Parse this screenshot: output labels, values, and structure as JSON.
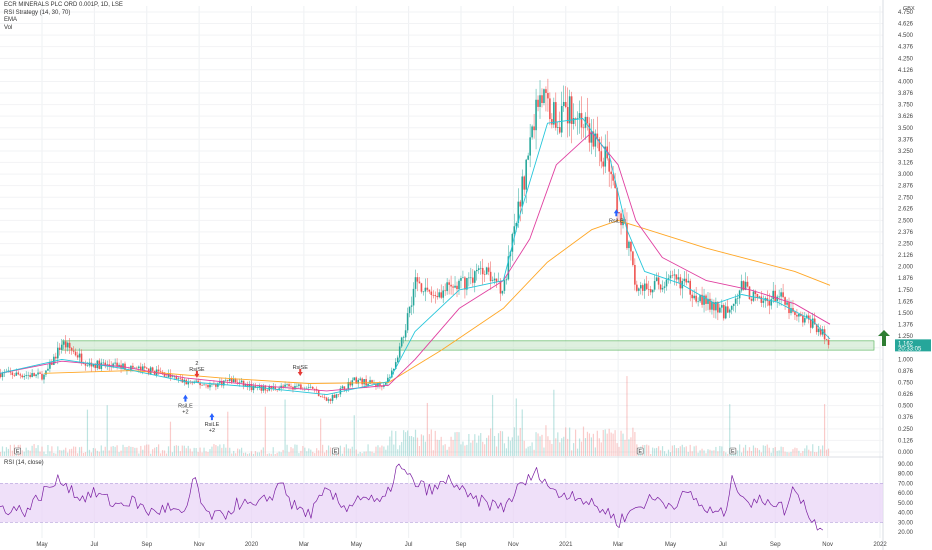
{
  "legend": {
    "symbol": "ECR MINERALS PLC ORD 0.001P, 1D, LSE",
    "strategy": "RSI Strategy (14, 30, 70)",
    "ema": "EMA",
    "vol": "Vol"
  },
  "rsi_legend": "RSI (14, close)",
  "price_axis": {
    "unit": "GBX",
    "last_price": "1.162",
    "countdown": "20:33:05"
  },
  "colors": {
    "up": "#26a69a",
    "down": "#ef5350",
    "ema_fast": "#26c6da",
    "ema_mid": "#e040a0",
    "ema_slow": "#ffa726",
    "rsi_line": "#7b1fa2",
    "rsi_band": "#e9d5f7",
    "zone_fill": "#c8e6c9",
    "zone_border": "#4caf50",
    "arrow": "#2e7d32"
  },
  "annotations": {
    "rule_long": "RsiLE",
    "rule_short": "RsiSE",
    "qty_plus": "+2",
    "qty_minus": "-2",
    "qty_plain": "2",
    "event": "E"
  },
  "chart_data": {
    "type": "candlestick",
    "x_ticks": [
      "May",
      "Jul",
      "Sep",
      "Nov",
      "2020",
      "Mar",
      "May",
      "Jul",
      "Sep",
      "Nov",
      "2021",
      "Mar",
      "May",
      "Jul",
      "Sep",
      "Nov",
      "2022"
    ],
    "price_ticks": [
      "4.750",
      "4.626",
      "4.500",
      "4.376",
      "4.250",
      "4.126",
      "4.000",
      "3.876",
      "3.750",
      "3.626",
      "3.500",
      "3.376",
      "3.250",
      "3.126",
      "3.000",
      "2.876",
      "2.750",
      "2.626",
      "2.500",
      "2.376",
      "2.250",
      "2.126",
      "2.000",
      "1.876",
      "1.750",
      "1.626",
      "1.500",
      "1.376",
      "1.250",
      "1.126",
      "1.000",
      "0.876",
      "0.750",
      "0.626",
      "0.500",
      "0.376",
      "0.250",
      "0.126",
      "0.000"
    ],
    "ylim": [
      0,
      4.75
    ],
    "rsi_ticks": [
      "90.00",
      "80.00",
      "70.00",
      "60.00",
      "50.00",
      "40.00",
      "30.00",
      "20.00"
    ],
    "rsi_band": [
      30,
      70
    ],
    "support_zone": [
      1.1,
      1.2
    ],
    "price_path": [
      [
        0,
        0.85
      ],
      [
        0.05,
        0.82
      ],
      [
        0.07,
        1.18
      ],
      [
        0.1,
        0.95
      ],
      [
        0.14,
        0.92
      ],
      [
        0.18,
        0.86
      ],
      [
        0.21,
        0.75
      ],
      [
        0.24,
        0.72
      ],
      [
        0.26,
        0.78
      ],
      [
        0.29,
        0.68
      ],
      [
        0.32,
        0.7
      ],
      [
        0.35,
        0.72
      ],
      [
        0.37,
        0.55
      ],
      [
        0.4,
        0.78
      ],
      [
        0.43,
        0.72
      ],
      [
        0.44,
        0.8
      ],
      [
        0.45,
        1.0
      ],
      [
        0.47,
        1.85
      ],
      [
        0.49,
        1.7
      ],
      [
        0.52,
        1.8
      ],
      [
        0.55,
        2.0
      ],
      [
        0.57,
        1.75
      ],
      [
        0.59,
        2.8
      ],
      [
        0.61,
        3.9
      ],
      [
        0.63,
        3.6
      ],
      [
        0.65,
        3.7
      ],
      [
        0.67,
        3.4
      ],
      [
        0.69,
        3.1
      ],
      [
        0.7,
        2.5
      ],
      [
        0.71,
        2.3
      ],
      [
        0.72,
        1.75
      ],
      [
        0.74,
        1.8
      ],
      [
        0.77,
        1.85
      ],
      [
        0.8,
        1.6
      ],
      [
        0.82,
        1.5
      ],
      [
        0.84,
        1.8
      ],
      [
        0.86,
        1.6
      ],
      [
        0.88,
        1.7
      ],
      [
        0.9,
        1.45
      ],
      [
        0.92,
        1.4
      ],
      [
        0.94,
        1.16
      ]
    ],
    "ema_fast": [
      [
        0,
        0.85
      ],
      [
        0.07,
        1.0
      ],
      [
        0.14,
        0.9
      ],
      [
        0.21,
        0.76
      ],
      [
        0.29,
        0.7
      ],
      [
        0.37,
        0.62
      ],
      [
        0.44,
        0.76
      ],
      [
        0.47,
        1.3
      ],
      [
        0.52,
        1.75
      ],
      [
        0.57,
        1.85
      ],
      [
        0.59,
        2.6
      ],
      [
        0.62,
        3.55
      ],
      [
        0.66,
        3.6
      ],
      [
        0.69,
        3.2
      ],
      [
        0.71,
        2.4
      ],
      [
        0.73,
        1.95
      ],
      [
        0.77,
        1.82
      ],
      [
        0.81,
        1.6
      ],
      [
        0.84,
        1.7
      ],
      [
        0.88,
        1.62
      ],
      [
        0.92,
        1.42
      ],
      [
        0.94,
        1.22
      ]
    ],
    "ema_mid": [
      [
        0,
        0.85
      ],
      [
        0.07,
        0.98
      ],
      [
        0.14,
        0.92
      ],
      [
        0.21,
        0.8
      ],
      [
        0.29,
        0.72
      ],
      [
        0.37,
        0.66
      ],
      [
        0.44,
        0.72
      ],
      [
        0.47,
        1.0
      ],
      [
        0.52,
        1.55
      ],
      [
        0.57,
        1.85
      ],
      [
        0.6,
        2.3
      ],
      [
        0.63,
        3.1
      ],
      [
        0.67,
        3.45
      ],
      [
        0.7,
        3.1
      ],
      [
        0.72,
        2.5
      ],
      [
        0.75,
        2.1
      ],
      [
        0.8,
        1.85
      ],
      [
        0.85,
        1.75
      ],
      [
        0.9,
        1.6
      ],
      [
        0.94,
        1.38
      ]
    ],
    "ema_slow": [
      [
        0.05,
        0.85
      ],
      [
        0.15,
        0.88
      ],
      [
        0.25,
        0.8
      ],
      [
        0.35,
        0.74
      ],
      [
        0.44,
        0.75
      ],
      [
        0.5,
        1.1
      ],
      [
        0.57,
        1.55
      ],
      [
        0.62,
        2.05
      ],
      [
        0.67,
        2.4
      ],
      [
        0.7,
        2.5
      ],
      [
        0.75,
        2.35
      ],
      [
        0.8,
        2.2
      ],
      [
        0.86,
        2.05
      ],
      [
        0.9,
        1.95
      ],
      [
        0.94,
        1.8
      ]
    ],
    "rsi_path": [
      [
        0,
        45
      ],
      [
        0.03,
        42
      ],
      [
        0.05,
        62
      ],
      [
        0.07,
        75
      ],
      [
        0.09,
        55
      ],
      [
        0.11,
        60
      ],
      [
        0.13,
        48
      ],
      [
        0.15,
        52
      ],
      [
        0.17,
        40
      ],
      [
        0.19,
        45
      ],
      [
        0.21,
        35
      ],
      [
        0.22,
        82
      ],
      [
        0.23,
        40
      ],
      [
        0.25,
        35
      ],
      [
        0.27,
        50
      ],
      [
        0.29,
        45
      ],
      [
        0.31,
        60
      ],
      [
        0.32,
        74
      ],
      [
        0.33,
        48
      ],
      [
        0.35,
        38
      ],
      [
        0.37,
        62
      ],
      [
        0.39,
        45
      ],
      [
        0.41,
        58
      ],
      [
        0.43,
        48
      ],
      [
        0.44,
        60
      ],
      [
        0.45,
        88
      ],
      [
        0.47,
        70
      ],
      [
        0.49,
        62
      ],
      [
        0.51,
        75
      ],
      [
        0.53,
        55
      ],
      [
        0.55,
        50
      ],
      [
        0.57,
        45
      ],
      [
        0.59,
        68
      ],
      [
        0.61,
        82
      ],
      [
        0.63,
        58
      ],
      [
        0.65,
        60
      ],
      [
        0.67,
        48
      ],
      [
        0.69,
        40
      ],
      [
        0.7,
        30
      ],
      [
        0.72,
        45
      ],
      [
        0.74,
        55
      ],
      [
        0.76,
        48
      ],
      [
        0.78,
        60
      ],
      [
        0.8,
        42
      ],
      [
        0.82,
        38
      ],
      [
        0.83,
        75
      ],
      [
        0.85,
        48
      ],
      [
        0.87,
        55
      ],
      [
        0.89,
        42
      ],
      [
        0.9,
        68
      ],
      [
        0.91,
        50
      ],
      [
        0.92,
        30
      ],
      [
        0.935,
        25
      ]
    ]
  }
}
